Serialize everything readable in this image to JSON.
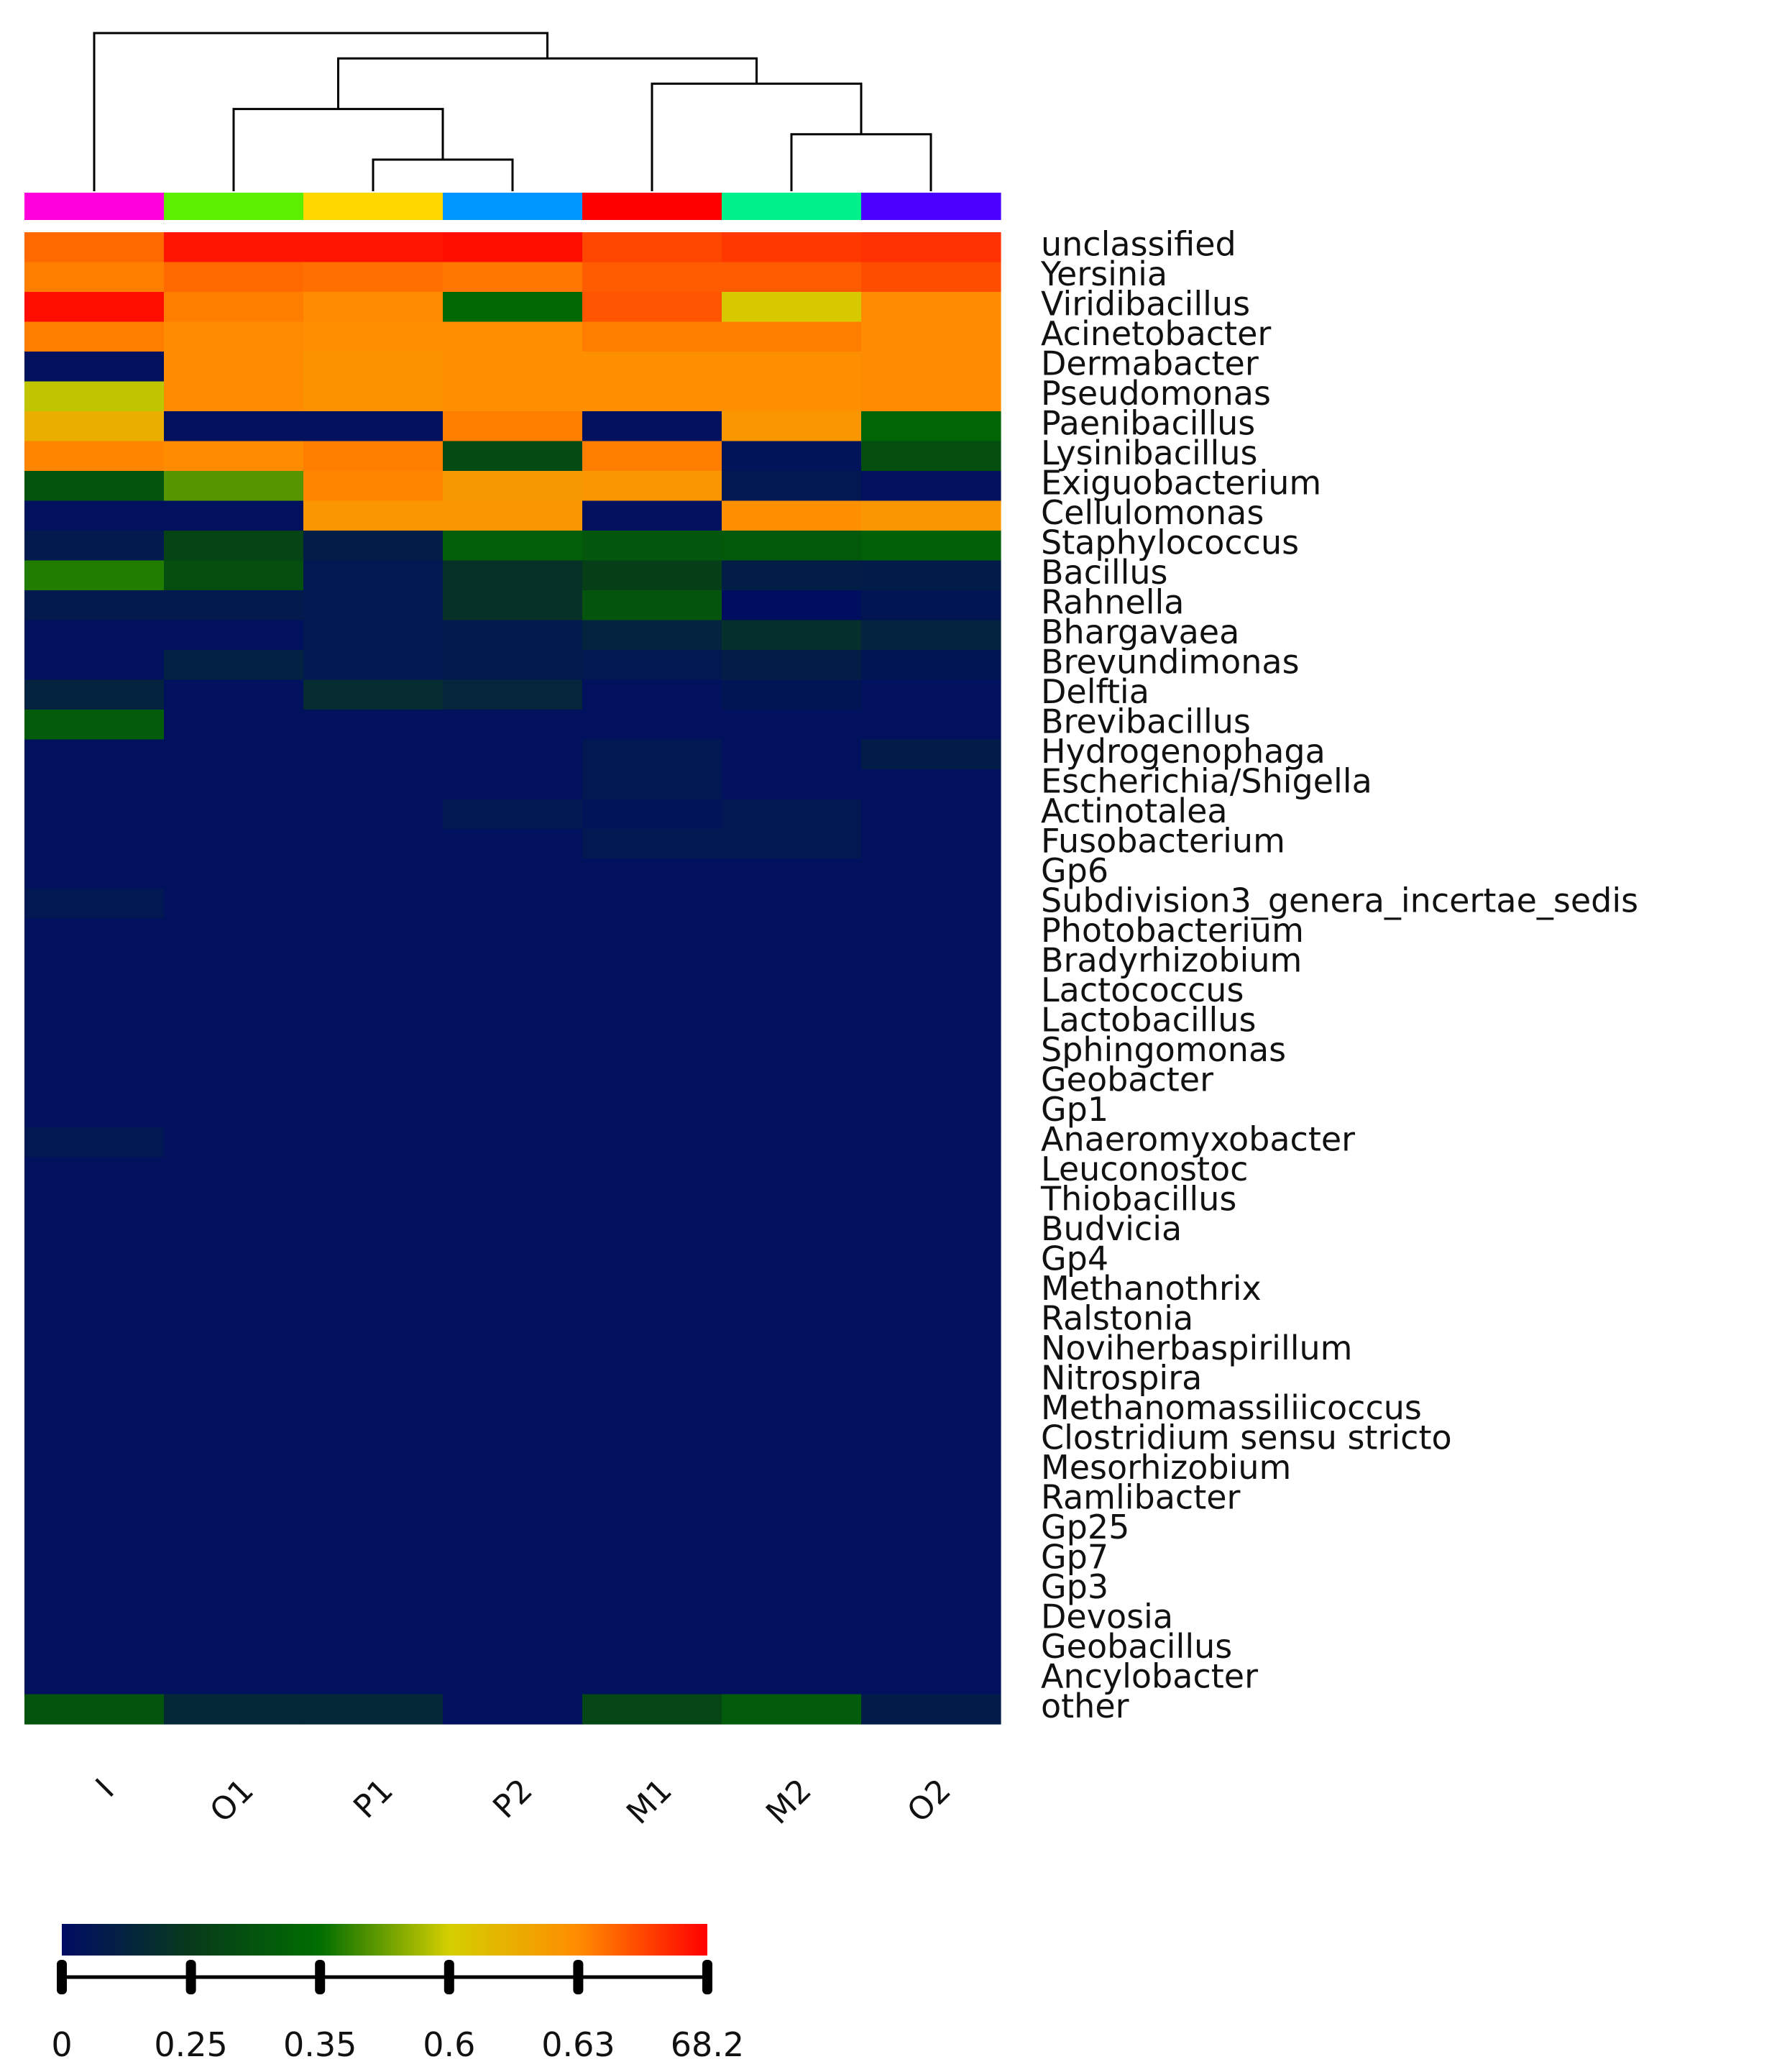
{
  "chart_data": {
    "type": "heatmap",
    "columns": [
      "I",
      "O1",
      "P1",
      "P2",
      "M1",
      "M2",
      "O2"
    ],
    "column_colors": [
      "#ff00dc",
      "#5cf000",
      "#ffd800",
      "#0096ff",
      "#ff0000",
      "#00f08c",
      "#4a00ff"
    ],
    "rows": [
      "unclassified",
      "Yersinia",
      "Viridibacillus",
      "Acinetobacter",
      "Dermabacter",
      "Pseudomonas",
      "Paenibacillus",
      "Lysinibacillus",
      "Exiguobacterium",
      "Cellulomonas",
      "Staphylococcus",
      "Bacillus",
      "Rahnella",
      "Bhargavaea",
      "Brevundimonas",
      "Delftia",
      "Brevibacillus",
      "Hydrogenophaga",
      "Escherichia/Shigella",
      "Actinotalea",
      "Fusobacterium",
      "Gp6",
      "Subdivision3_genera_incertae_sedis",
      "Photobacterium",
      "Bradyrhizobium",
      "Lactococcus",
      "Lactobacillus",
      "Sphingomonas",
      "Geobacter",
      "Gp1",
      "Anaeromyxobacter",
      "Leuconostoc",
      "Thiobacillus",
      "Budvicia",
      "Gp4",
      "Methanothrix",
      "Ralstonia",
      "Noviherbaspirillum",
      "Nitrospira",
      "Methanomassiliicoccus",
      "Clostridium sensu stricto",
      "Mesorhizobium",
      "Ramlibacter",
      "Gp25",
      "Gp7",
      "Gp3",
      "Devosia",
      "Geobacillus",
      "Ancylobacter",
      "other"
    ],
    "color_scale": {
      "stops": [
        "#000c64",
        "#073a1a",
        "#006e00",
        "#d4cf00",
        "#ff8c00",
        "#ff0000"
      ],
      "labels": [
        "0",
        "0.25",
        "0.35",
        "0.6",
        "0.63",
        "68.2"
      ]
    },
    "values": [
      [
        0.85,
        0.97,
        0.97,
        0.98,
        0.9,
        0.92,
        0.93
      ],
      [
        0.82,
        0.85,
        0.84,
        0.83,
        0.87,
        0.87,
        0.89
      ],
      [
        0.98,
        0.82,
        0.8,
        0.38,
        0.88,
        0.62,
        0.8
      ],
      [
        0.82,
        0.8,
        0.79,
        0.79,
        0.82,
        0.82,
        0.8
      ],
      [
        0.02,
        0.8,
        0.78,
        0.79,
        0.79,
        0.79,
        0.8
      ],
      [
        0.58,
        0.8,
        0.78,
        0.79,
        0.79,
        0.79,
        0.8
      ],
      [
        0.7,
        0.02,
        0.02,
        0.82,
        0.02,
        0.77,
        0.36
      ],
      [
        0.81,
        0.8,
        0.82,
        0.26,
        0.82,
        0.03,
        0.28
      ],
      [
        0.3,
        0.48,
        0.81,
        0.76,
        0.77,
        0.05,
        0.02
      ],
      [
        0.02,
        0.02,
        0.77,
        0.77,
        0.02,
        0.79,
        0.77
      ],
      [
        0.06,
        0.24,
        0.08,
        0.34,
        0.31,
        0.32,
        0.35
      ],
      [
        0.43,
        0.28,
        0.05,
        0.16,
        0.22,
        0.08,
        0.07
      ],
      [
        0.06,
        0.06,
        0.05,
        0.16,
        0.3,
        0.01,
        0.04
      ],
      [
        0.02,
        0.02,
        0.05,
        0.06,
        0.1,
        0.15,
        0.1
      ],
      [
        0.02,
        0.09,
        0.05,
        0.06,
        0.05,
        0.08,
        0.04
      ],
      [
        0.1,
        0.02,
        0.14,
        0.11,
        0.02,
        0.04,
        0.02
      ],
      [
        0.33,
        0.02,
        0.02,
        0.02,
        0.02,
        0.02,
        0.02
      ],
      [
        0.02,
        0.02,
        0.02,
        0.02,
        0.05,
        0.02,
        0.07
      ],
      [
        0.02,
        0.02,
        0.02,
        0.02,
        0.05,
        0.02,
        0.02
      ],
      [
        0.02,
        0.02,
        0.02,
        0.05,
        0.03,
        0.05,
        0.02
      ],
      [
        0.02,
        0.02,
        0.02,
        0.02,
        0.05,
        0.05,
        0.02
      ],
      [
        0.02,
        0.02,
        0.02,
        0.02,
        0.02,
        0.02,
        0.02
      ],
      [
        0.05,
        0.02,
        0.02,
        0.02,
        0.02,
        0.02,
        0.02
      ],
      [
        0.02,
        0.02,
        0.02,
        0.02,
        0.02,
        0.02,
        0.02
      ],
      [
        0.02,
        0.02,
        0.02,
        0.02,
        0.02,
        0.02,
        0.02
      ],
      [
        0.02,
        0.02,
        0.02,
        0.02,
        0.02,
        0.02,
        0.02
      ],
      [
        0.02,
        0.02,
        0.02,
        0.02,
        0.02,
        0.02,
        0.02
      ],
      [
        0.02,
        0.02,
        0.02,
        0.02,
        0.02,
        0.02,
        0.02
      ],
      [
        0.02,
        0.02,
        0.02,
        0.02,
        0.02,
        0.02,
        0.02
      ],
      [
        0.02,
        0.02,
        0.02,
        0.02,
        0.02,
        0.02,
        0.02
      ],
      [
        0.05,
        0.02,
        0.02,
        0.02,
        0.02,
        0.02,
        0.02
      ],
      [
        0.02,
        0.02,
        0.02,
        0.02,
        0.02,
        0.02,
        0.02
      ],
      [
        0.02,
        0.02,
        0.02,
        0.02,
        0.02,
        0.02,
        0.02
      ],
      [
        0.02,
        0.02,
        0.02,
        0.02,
        0.02,
        0.02,
        0.02
      ],
      [
        0.02,
        0.02,
        0.02,
        0.02,
        0.02,
        0.02,
        0.02
      ],
      [
        0.02,
        0.02,
        0.02,
        0.02,
        0.02,
        0.02,
        0.02
      ],
      [
        0.02,
        0.02,
        0.02,
        0.02,
        0.02,
        0.02,
        0.02
      ],
      [
        0.02,
        0.02,
        0.02,
        0.02,
        0.02,
        0.02,
        0.02
      ],
      [
        0.02,
        0.02,
        0.02,
        0.02,
        0.02,
        0.02,
        0.02
      ],
      [
        0.02,
        0.02,
        0.02,
        0.02,
        0.02,
        0.02,
        0.02
      ],
      [
        0.02,
        0.02,
        0.02,
        0.02,
        0.02,
        0.02,
        0.02
      ],
      [
        0.02,
        0.02,
        0.02,
        0.02,
        0.02,
        0.02,
        0.02
      ],
      [
        0.02,
        0.02,
        0.02,
        0.02,
        0.02,
        0.02,
        0.02
      ],
      [
        0.02,
        0.02,
        0.02,
        0.02,
        0.02,
        0.02,
        0.02
      ],
      [
        0.02,
        0.02,
        0.02,
        0.02,
        0.02,
        0.02,
        0.02
      ],
      [
        0.02,
        0.02,
        0.02,
        0.02,
        0.02,
        0.02,
        0.02
      ],
      [
        0.02,
        0.02,
        0.02,
        0.02,
        0.02,
        0.02,
        0.02
      ],
      [
        0.02,
        0.02,
        0.02,
        0.02,
        0.02,
        0.02,
        0.02
      ],
      [
        0.02,
        0.02,
        0.02,
        0.02,
        0.02,
        0.02,
        0.02
      ],
      [
        0.3,
        0.12,
        0.12,
        0.02,
        0.25,
        0.33,
        0.07
      ]
    ],
    "column_dendrogram": {
      "order": [
        "I",
        "O1",
        "P1",
        "P2",
        "M1",
        "M2",
        "O2"
      ],
      "merges": [
        [
          2,
          3
        ],
        [
          5,
          6
        ],
        [
          1,
          -1
        ],
        [
          4,
          -2
        ],
        [
          -3,
          -4
        ],
        [
          0,
          -5
        ]
      ]
    },
    "legend": "bottom-left"
  }
}
